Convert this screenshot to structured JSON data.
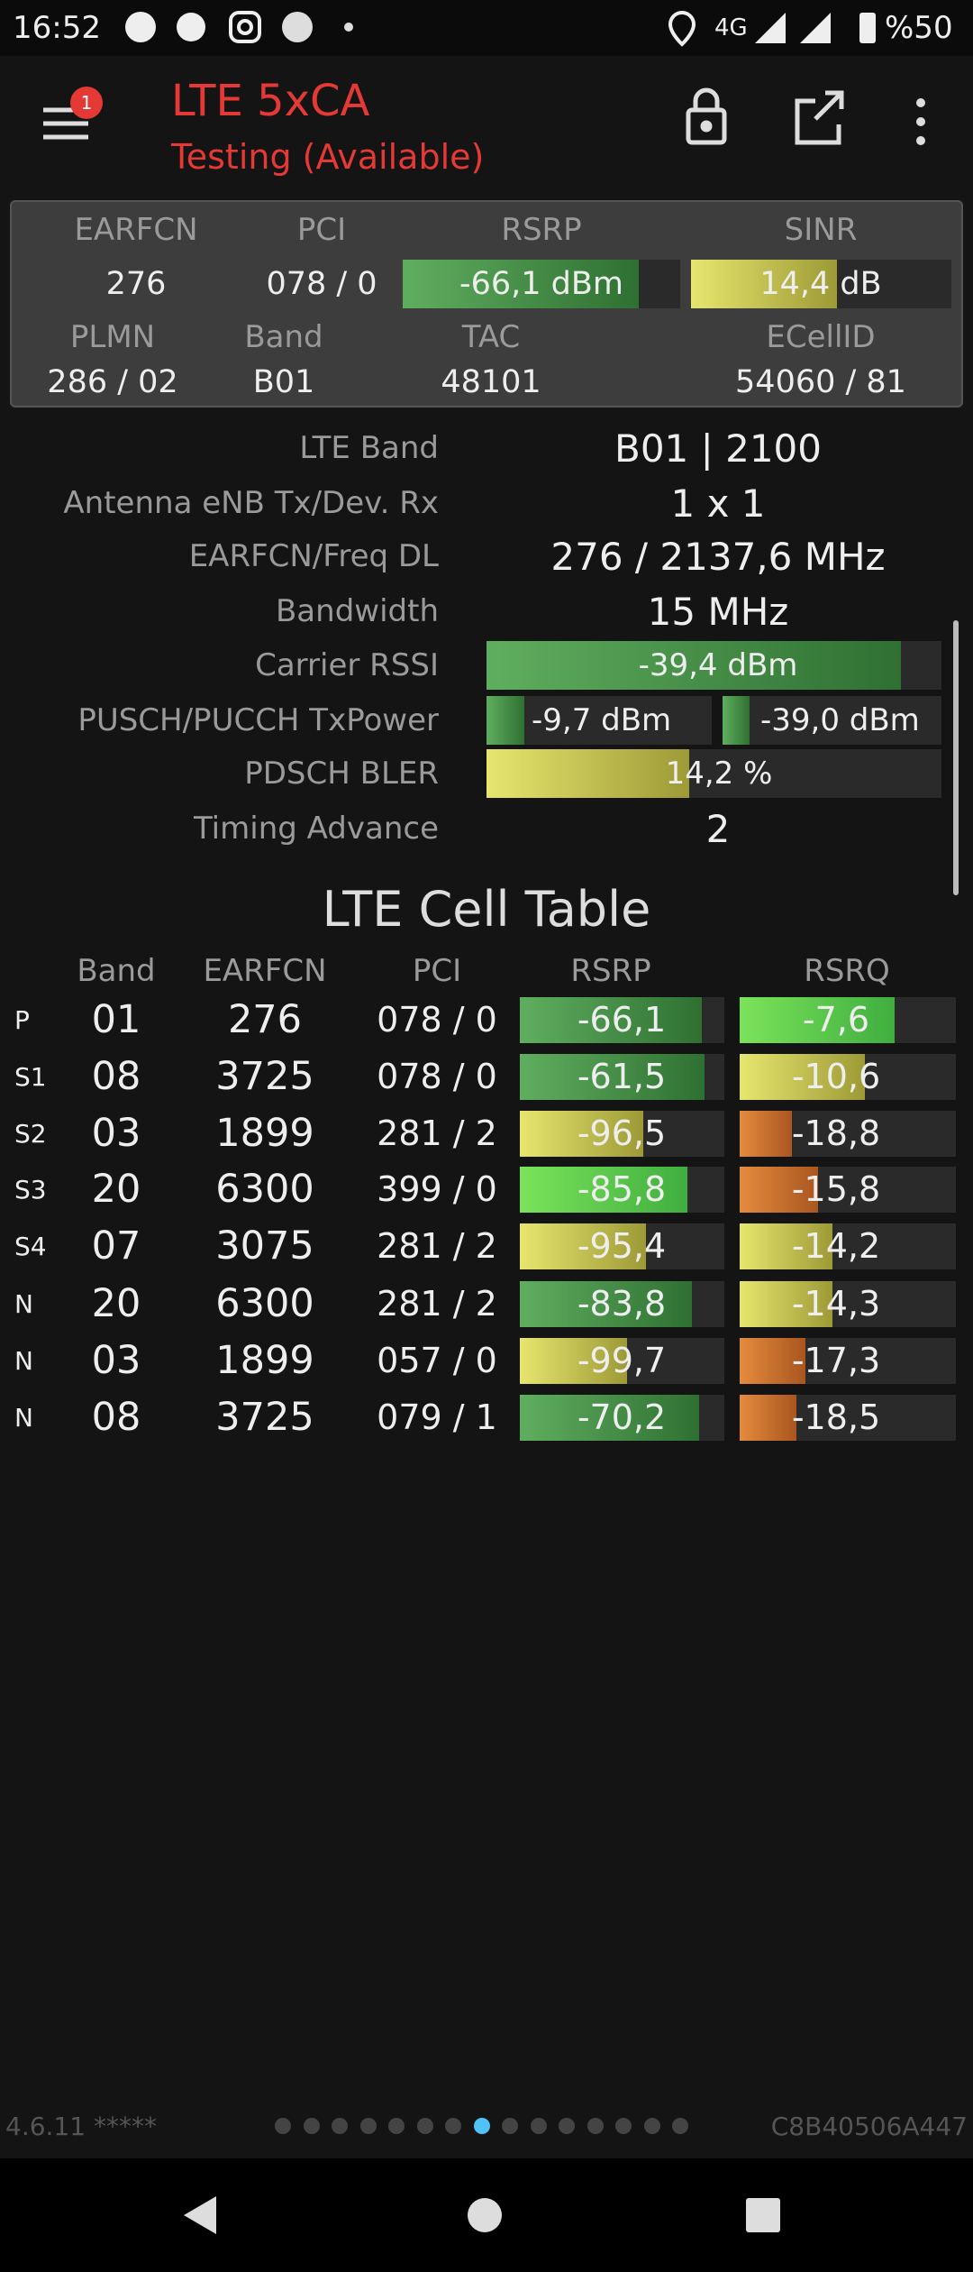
{
  "status_bar": {
    "time": "16:52",
    "network": "4G",
    "battery": "%50"
  },
  "app_bar": {
    "badge": "1",
    "title": "LTE 5xCA",
    "subtitle": "Testing (Available)"
  },
  "summary": {
    "headers": [
      "EARFCN",
      "PCI",
      "RSRP",
      "SINR"
    ],
    "values": [
      "276",
      "078 / 0",
      "-66,1 dBm",
      "14,4 dB"
    ],
    "headers2": [
      "PLMN",
      "Band",
      "TAC",
      "ECellID"
    ],
    "values2": [
      "286 / 02",
      "B01",
      "48101",
      "54060 / 81"
    ]
  },
  "details": [
    {
      "label": "LTE Band",
      "value": "B01 | 2100"
    },
    {
      "label": "Antenna eNB Tx/Dev. Rx",
      "value": "1 x 1"
    },
    {
      "label": "EARFCN/Freq DL",
      "value": "276 / 2137,6 MHz"
    },
    {
      "label": "Bandwidth",
      "value": "15 MHz"
    },
    {
      "label": "Carrier RSSI",
      "value": "-39,4 dBm"
    },
    {
      "label": "PUSCH/PUCCH TxPower",
      "values": [
        "-9,7 dBm",
        "-39,0 dBm"
      ]
    },
    {
      "label": "PDSCH BLER",
      "value": "14,2 %"
    },
    {
      "label": "Timing Advance",
      "value": "2"
    }
  ],
  "cell_table": {
    "title": "LTE Cell Table",
    "columns": [
      "Band",
      "EARFCN",
      "PCI",
      "RSRP",
      "RSRQ"
    ],
    "rows": [
      [
        "P",
        "01",
        "276",
        "078 / 0",
        "-66,1",
        "-7,6"
      ],
      [
        "S1",
        "08",
        "3725",
        "078 / 0",
        "-61,5",
        "-10,6"
      ],
      [
        "S2",
        "03",
        "1899",
        "281 / 2",
        "-96,5",
        "-18,8"
      ],
      [
        "S3",
        "20",
        "6300",
        "399 / 0",
        "-85,8",
        "-15,8"
      ],
      [
        "S4",
        "07",
        "3075",
        "281 / 2",
        "-95,4",
        "-14,2"
      ],
      [
        "N",
        "20",
        "6300",
        "281 / 2",
        "-83,8",
        "-14,3"
      ],
      [
        "N",
        "03",
        "1899",
        "057 / 0",
        "-99,7",
        "-17,3"
      ],
      [
        "N",
        "08",
        "3725",
        "079 / 1",
        "-70,2",
        "-18,5"
      ]
    ]
  },
  "footer": {
    "version": "4.6.11 *****",
    "device_id": "C8B40506A447"
  }
}
